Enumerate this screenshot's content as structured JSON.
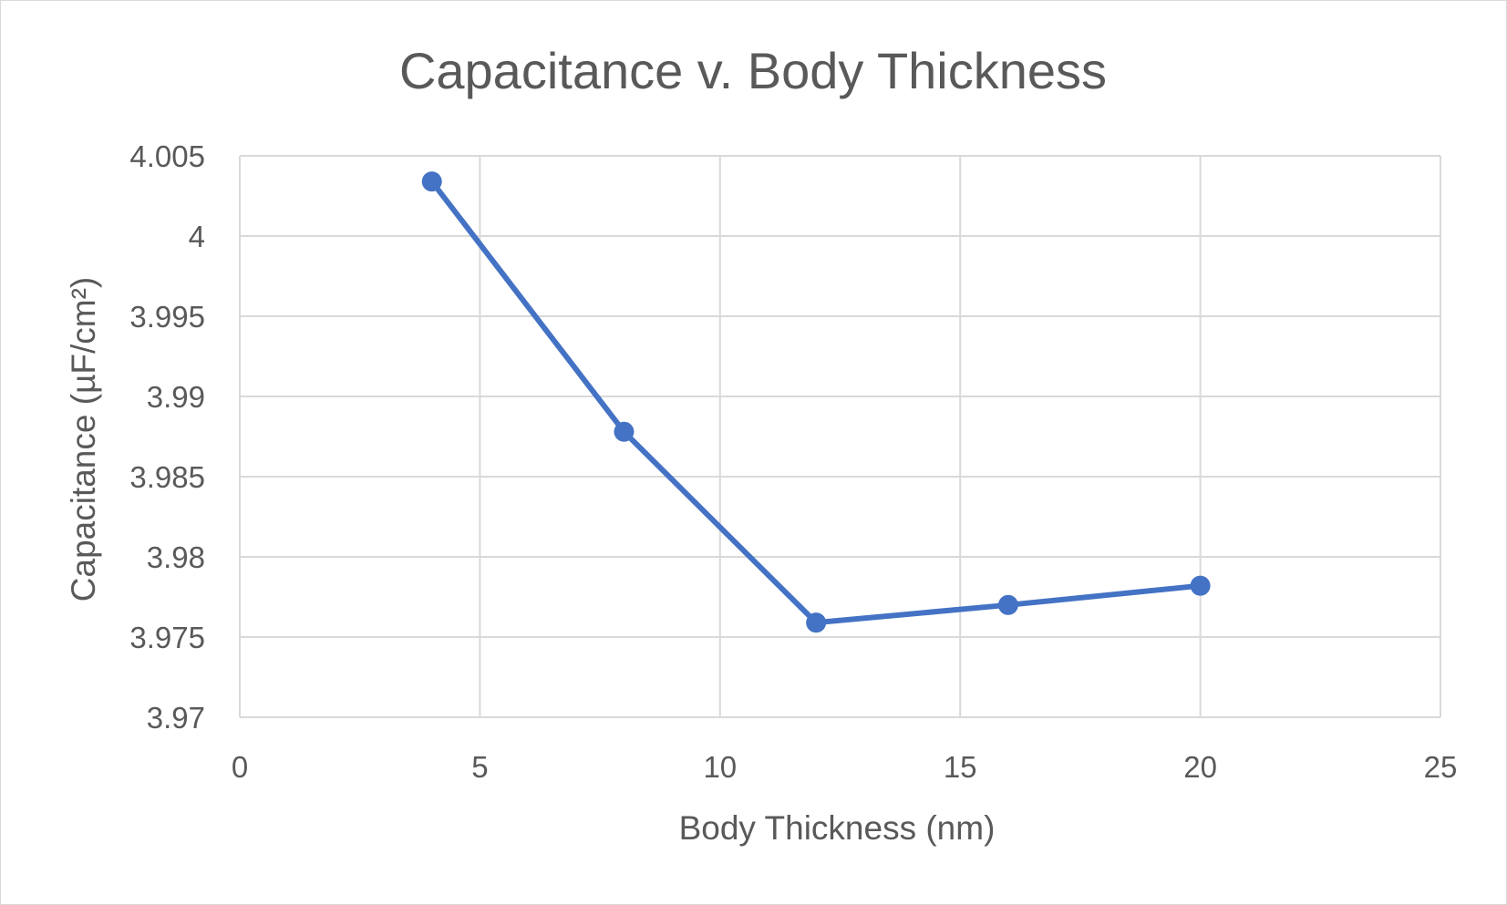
{
  "chart_data": {
    "type": "scatter",
    "title": "Capacitance v. Body Thickness",
    "xlabel": "Body Thickness (nm)",
    "ylabel": "Capacitance (µF/cm²)",
    "xlim": [
      0,
      25
    ],
    "ylim": [
      3.97,
      4.005
    ],
    "x_ticks": [
      0,
      5,
      10,
      15,
      20,
      25
    ],
    "y_ticks": [
      3.97,
      3.975,
      3.98,
      3.985,
      3.99,
      3.995,
      4,
      4.005
    ],
    "x_tick_labels": [
      "0",
      "5",
      "10",
      "15",
      "20",
      "25"
    ],
    "y_tick_labels": [
      "3.97",
      "3.975",
      "3.98",
      "3.985",
      "3.99",
      "3.995",
      "4",
      "4.005"
    ],
    "grid": true,
    "legend": "none",
    "lines_connect_points": true,
    "markers": true,
    "series": [
      {
        "color": "#4472C4",
        "points": [
          {
            "x": 4,
            "y": 4.0034
          },
          {
            "x": 8,
            "y": 3.9878
          },
          {
            "x": 12,
            "y": 3.9759
          },
          {
            "x": 16,
            "y": 3.977
          },
          {
            "x": 20,
            "y": 3.9782
          }
        ]
      }
    ]
  },
  "colors": {
    "grid": "#d9d9d9",
    "text": "#595959",
    "series": "#4472C4"
  }
}
